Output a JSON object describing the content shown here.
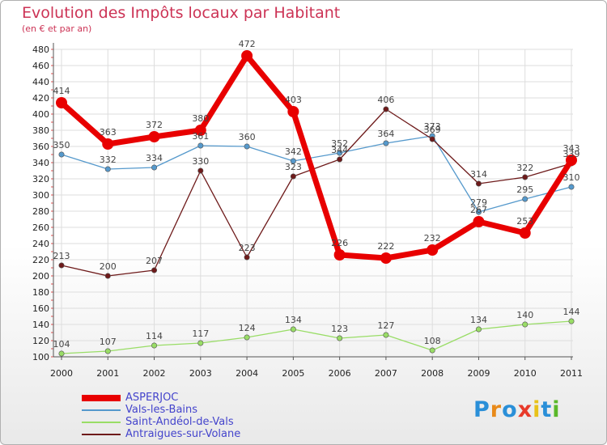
{
  "title": "Evolution des Impôts locaux par Habitant",
  "subtitle": "(en € et par an)",
  "logo": {
    "text": "Proxiti",
    "letters": [
      {
        "ch": "P",
        "color": "#2a8fd8"
      },
      {
        "ch": "r",
        "color": "#e88a1a"
      },
      {
        "ch": "o",
        "color": "#2a8fd8"
      },
      {
        "ch": "x",
        "color": "#e83a2a"
      },
      {
        "ch": "i",
        "color": "#e8c21a"
      },
      {
        "ch": "t",
        "color": "#2a8fd8"
      },
      {
        "ch": "i",
        "color": "#5ab82a"
      }
    ]
  },
  "chart_data": {
    "type": "line",
    "title": "Evolution des Impôts locaux par Habitant",
    "subtitle": "(en € et par an)",
    "xlabel": "",
    "ylabel": "",
    "x": [
      "2000",
      "2001",
      "2002",
      "2003",
      "2004",
      "2005",
      "2006",
      "2007",
      "2008",
      "2009",
      "2010",
      "2011"
    ],
    "ylim": [
      100,
      480
    ],
    "ystep": 20,
    "grid": true,
    "legend_position": "bottom-left",
    "series": [
      {
        "name": "ASPERJOC",
        "color": "#e80000",
        "weight": "heavy",
        "values": [
          414,
          363,
          372,
          380,
          472,
          403,
          226,
          222,
          232,
          267,
          253,
          343
        ]
      },
      {
        "name": "Vals-les-Bains",
        "color": "#5599cc",
        "weight": "thin",
        "values": [
          350,
          332,
          334,
          361,
          360,
          342,
          352,
          364,
          373,
          279,
          295,
          310
        ]
      },
      {
        "name": "Saint-Andéol-de-Vals",
        "color": "#99dd66",
        "weight": "thin",
        "values": [
          104,
          107,
          114,
          117,
          124,
          134,
          123,
          127,
          108,
          134,
          140,
          144
        ]
      },
      {
        "name": "Antraigues-sur-Volane",
        "color": "#6e1a1a",
        "weight": "thin",
        "values": [
          213,
          200,
          207,
          330,
          223,
          323,
          344,
          406,
          369,
          314,
          322,
          339
        ]
      }
    ]
  }
}
